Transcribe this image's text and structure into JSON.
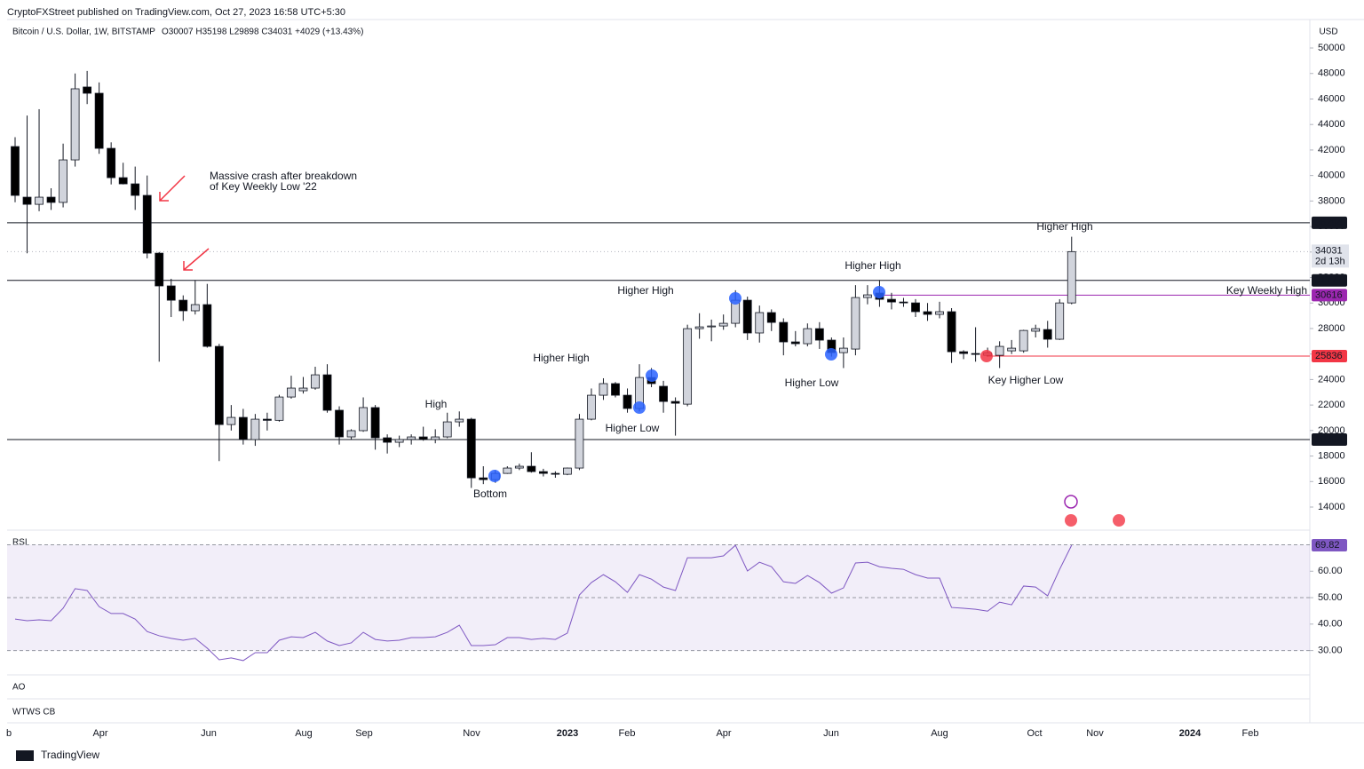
{
  "header": {
    "publisher": "CryptoFXStreet published on TradingView.com, Oct 27, 2023 16:58 UTC+5:30",
    "symbol": "Bitcoin / U.S. Dollar, 1W, BITSTAMP",
    "ohlc": "O30007 H35198 L29898 C34031 +4029 (+13.43%)"
  },
  "chart_data": {
    "type": "candlestick",
    "currency": "USD",
    "open": [
      42270,
      38300,
      37740,
      38300,
      37890,
      41225,
      46940,
      46450,
      42130,
      39830,
      39345,
      38440,
      33910,
      31340,
      30220,
      29390,
      29875,
      26600,
      20470,
      21030,
      19290,
      20890,
      20800,
      22630,
      23120,
      23330,
      24370,
      21590,
      19500,
      19990,
      21800,
      19430,
      19080,
      19300,
      19500,
      19290,
      19500,
      20680,
      20890,
      16290,
      16150,
      16640,
      17060,
      17200,
      16780,
      16640,
      16570,
      17060,
      20890,
      22770,
      23680,
      22770,
      21730,
      24160,
      23470,
      22280,
      22070,
      27990,
      28130,
      28200,
      28410,
      30220,
      27650,
      29250,
      28480,
      26950,
      26810,
      27990,
      27090,
      26110,
      26390,
      30430,
      30780,
      30290,
      30080,
      30010,
      29320,
      29110,
      29320,
      26180,
      26040,
      25900,
      25900,
      26250,
      26250,
      27790,
      27920,
      27160,
      30007
    ],
    "high": [
      43000,
      44700,
      45200,
      39000,
      42500,
      48000,
      48200,
      47300,
      42600,
      41000,
      40700,
      40000,
      34000,
      31900,
      30600,
      31800,
      31500,
      26800,
      22000,
      21700,
      21300,
      21400,
      22800,
      24300,
      24200,
      25000,
      25200,
      21900,
      20100,
      22600,
      22000,
      19700,
      19600,
      19700,
      20300,
      20100,
      21400,
      21500,
      21000,
      17200,
      16900,
      17200,
      17400,
      18300,
      17000,
      16800,
      17100,
      21300,
      23300,
      24100,
      23800,
      23300,
      25200,
      24900,
      23900,
      22600,
      28300,
      29200,
      28700,
      29100,
      31000,
      30500,
      29800,
      29500,
      28800,
      27800,
      28400,
      28500,
      27300,
      27300,
      31400,
      31400,
      31800,
      30800,
      30400,
      30300,
      30000,
      30100,
      29600,
      26300,
      28100,
      26500,
      27000,
      27100,
      27900,
      28300,
      28600,
      30300,
      35198
    ],
    "low": [
      37900,
      33900,
      37200,
      37300,
      37500,
      40700,
      45600,
      41700,
      39300,
      39300,
      37300,
      33500,
      25400,
      28900,
      28600,
      29100,
      26500,
      17600,
      20000,
      18900,
      18800,
      20000,
      20700,
      22500,
      22900,
      23200,
      21400,
      18900,
      19300,
      19900,
      18500,
      18200,
      18700,
      18900,
      19200,
      19000,
      19400,
      20300,
      15500,
      15800,
      15900,
      16600,
      16900,
      16700,
      16400,
      16300,
      16500,
      16900,
      20800,
      22400,
      22600,
      21400,
      21500,
      23400,
      21400,
      19600,
      21900,
      27200,
      27000,
      27900,
      28100,
      27100,
      26900,
      27800,
      25900,
      26600,
      26600,
      26400,
      25800,
      24900,
      25900,
      29900,
      29700,
      29500,
      29700,
      28900,
      28600,
      28800,
      25300,
      25600,
      25400,
      25800,
      24900,
      26000,
      26100,
      27300,
      26500,
      27100,
      29898
    ],
    "close": [
      38440,
      37740,
      38300,
      37890,
      41225,
      46800,
      46450,
      42130,
      39830,
      39345,
      38440,
      33910,
      31340,
      30220,
      29390,
      29875,
      26600,
      20470,
      21030,
      19290,
      20890,
      20800,
      22630,
      23330,
      23330,
      24370,
      21590,
      19500,
      19990,
      21800,
      19430,
      19080,
      19300,
      19500,
      19290,
      19500,
      20680,
      20890,
      16290,
      16150,
      16640,
      17060,
      17200,
      16780,
      16640,
      16570,
      17060,
      20890,
      22770,
      23680,
      22770,
      21730,
      24160,
      23680,
      22280,
      22140,
      27990,
      28130,
      28200,
      28410,
      30220,
      27650,
      29250,
      28480,
      26950,
      26810,
      27990,
      27090,
      26110,
      26460,
      30430,
      30640,
      30290,
      30080,
      30010,
      29320,
      29110,
      29320,
      26180,
      26040,
      25970,
      26100,
      26600,
      26460,
      27850,
      27990,
      27160,
      30007,
      34031
    ],
    "up_color": "#d1d4dc",
    "down_color": "#000000",
    "ylim": [
      12190,
      52370
    ],
    "yticks": [
      14000,
      16000,
      18000,
      20000,
      22000,
      24000,
      26000,
      28000,
      30000,
      32000,
      34000,
      36000,
      38000,
      40000,
      42000,
      44000,
      46000,
      48000,
      50000
    ],
    "xaxis_labels": [
      "b",
      "Apr",
      "Jun",
      "Aug",
      "Sep",
      "Nov",
      "2023",
      "Feb",
      "Apr",
      "Jun",
      "Aug",
      "Oct",
      "Nov",
      "2024",
      "Feb"
    ],
    "levels": [
      {
        "value": 36294,
        "color": "#131722"
      },
      {
        "value": 31777,
        "color": "#131722"
      },
      {
        "value": 30616,
        "color": "#9c27b0"
      },
      {
        "value": 25836,
        "color": "#f23645"
      },
      {
        "value": 19294,
        "color": "#131722"
      }
    ],
    "countdown": "2d 13h",
    "level_label": "Key Weekly High",
    "annotations": [
      "Massive crash after breakdown",
      "of Key Weekly Low '22",
      "Higher High",
      "Higher High",
      "Higher High",
      "Higher High",
      "High",
      "Higher Low",
      "Bottom",
      "Higher Low",
      "Key Higher Low"
    ]
  },
  "rsi": {
    "type": "line",
    "name": "RSI",
    "color": "#7e57c2",
    "values": [
      41.9,
      41.3,
      41.6,
      41.3,
      46.0,
      53.4,
      52.7,
      46.6,
      44.0,
      44.0,
      41.9,
      37.2,
      35.6,
      34.6,
      33.9,
      34.6,
      30.9,
      26.5,
      27.2,
      26.2,
      29.2,
      29.2,
      33.9,
      35.2,
      34.9,
      36.9,
      33.6,
      31.9,
      32.9,
      36.9,
      34.2,
      33.6,
      33.9,
      34.9,
      34.9,
      35.2,
      36.9,
      39.6,
      31.9,
      31.9,
      32.2,
      34.9,
      34.9,
      34.2,
      34.6,
      34.2,
      36.6,
      51.0,
      55.7,
      58.7,
      56.0,
      52.0,
      58.7,
      57.0,
      54.0,
      52.7,
      65.1,
      65.1,
      65.1,
      65.8,
      69.8,
      60.1,
      63.4,
      61.7,
      56.0,
      55.4,
      58.4,
      55.7,
      51.7,
      53.7,
      63.1,
      63.4,
      61.7,
      61.1,
      60.7,
      58.7,
      57.4,
      57.4,
      46.3,
      46.0,
      45.6,
      44.9,
      48.3,
      47.3,
      54.4,
      54.0,
      50.7,
      60.7,
      69.82
    ],
    "ylim": [
      20.8,
      75.2
    ],
    "yticks": [
      {
        "value": 60,
        "label": "60.00"
      },
      {
        "value": 50,
        "label": "50.00"
      },
      {
        "value": 40,
        "label": "40.00"
      },
      {
        "value": 30,
        "label": "30.00"
      }
    ],
    "levels": [
      70,
      50,
      30
    ]
  },
  "panes": [
    "AO",
    "WTWS CB"
  ],
  "footer": "TradingView"
}
